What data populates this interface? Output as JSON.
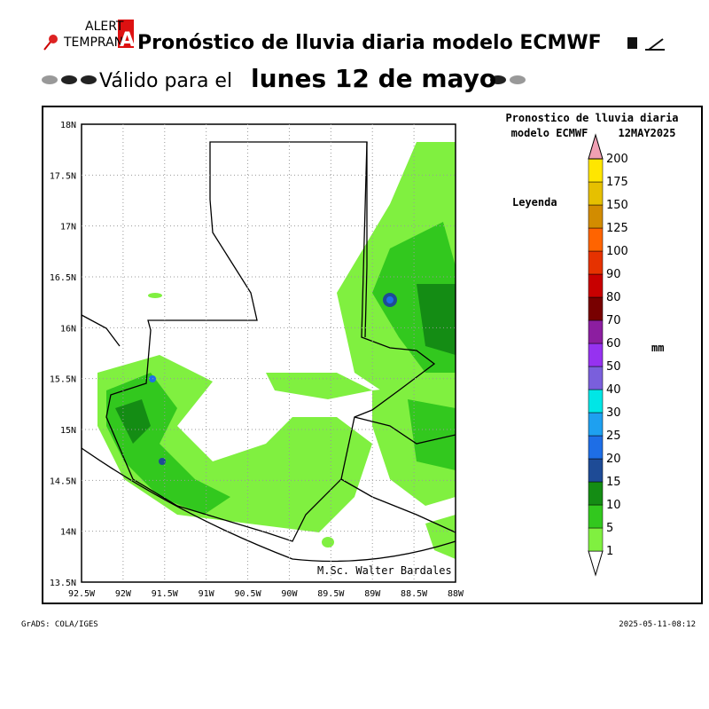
{
  "header": {
    "logo": [
      "ALERT",
      "TEMPRAN",
      "A"
    ],
    "title": "Pronóstico de lluvia diaria modelo ECMWF",
    "subtitle_prefix": "Válido para el",
    "subtitle_date": "lunes 12 de mayo"
  },
  "map": {
    "title_line1": "Pronostico de lluvia diaria",
    "title_line2a": "modelo ECMWF",
    "title_line2b": "12MAY2025",
    "legend_label": "Leyenda",
    "unit": "mm",
    "credit": "M.Sc. Walter Bardales",
    "lat_labels": [
      "18N",
      "17.5N",
      "17N",
      "16.5N",
      "16N",
      "15.5N",
      "15N",
      "14.5N",
      "14N",
      "13.5N"
    ],
    "lon_labels": [
      "92.5W",
      "92W",
      "91.5W",
      "91W",
      "90.5W",
      "90W",
      "89.5W",
      "89W",
      "88.5W",
      "88W"
    ],
    "scale": [
      "1",
      "5",
      "10",
      "15",
      "20",
      "25",
      "30",
      "40",
      "50",
      "60",
      "70",
      "80",
      "90",
      "100",
      "125",
      "150",
      "175",
      "200"
    ],
    "scale_colors": [
      "#80f040",
      "#32c81e",
      "#148c14",
      "#1e4b96",
      "#1e6ee6",
      "#1ea0f0",
      "#00e6e6",
      "#7a5fdc",
      "#9632f0",
      "#8c1ea0",
      "#780000",
      "#c80000",
      "#e63200",
      "#ff6400",
      "#d28c00",
      "#e6c000",
      "#ffe600"
    ],
    "scale_top_color": "#f0a0b4"
  },
  "footer": {
    "left": "GrADS: COLA/IGES",
    "right": "2025-05-11-08:12"
  }
}
